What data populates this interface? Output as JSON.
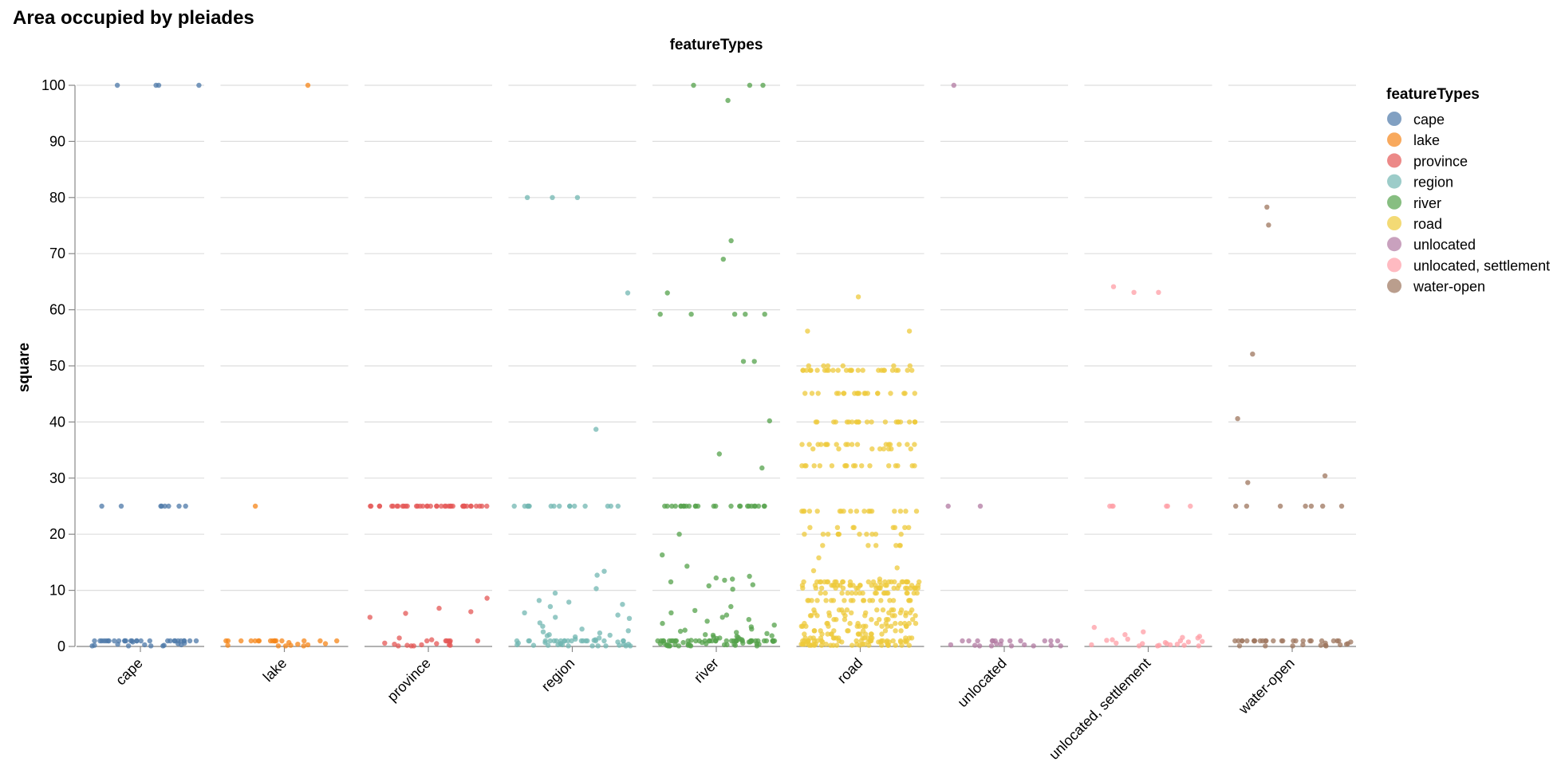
{
  "chart_data": {
    "type": "scatter",
    "title": "Area occupied by pleiades",
    "column_title": "featureTypes",
    "ylabel": "square",
    "ylim": [
      0,
      100
    ],
    "yticks": [
      0,
      10,
      20,
      30,
      40,
      50,
      60,
      70,
      80,
      90,
      100
    ],
    "grid": true,
    "jitter": "horizontal strip plot, points jittered within each column",
    "legend": {
      "title": "featureTypes",
      "position": "right",
      "entries": [
        "cape",
        "lake",
        "province",
        "region",
        "river",
        "road",
        "unlocated",
        "unlocated, settlement",
        "water-open"
      ]
    },
    "colors": {
      "cape": "#4c78a8",
      "lake": "#f58518",
      "province": "#e45756",
      "region": "#72b7b2",
      "river": "#54a24b",
      "road": "#eeca3b",
      "unlocated": "#b279a2",
      "unlocated, settlement": "#ff9da6",
      "water-open": "#9d755d"
    },
    "series": [
      {
        "name": "cape",
        "values": [
          100,
          100,
          100,
          100,
          25,
          25,
          25,
          25,
          25,
          25,
          25,
          25,
          1,
          1,
          1,
          1,
          1,
          1,
          1,
          1,
          1,
          1,
          1,
          1,
          1,
          1,
          1,
          1,
          1,
          1,
          1,
          1,
          1,
          1,
          1,
          1,
          1,
          1,
          1,
          1,
          0.8,
          0.6,
          0.5,
          0.4,
          0.3,
          0.3,
          0.2,
          0.2,
          0.1,
          0.1,
          0.1,
          0.1
        ]
      },
      {
        "name": "lake",
        "values": [
          100,
          25,
          1,
          1,
          1,
          1,
          1,
          1,
          1,
          1,
          1,
          1,
          1,
          1,
          1,
          1,
          1,
          1,
          0.7,
          0.5,
          0.4,
          0.3,
          0.2,
          0.2,
          0.1,
          0.1,
          0.1
        ]
      },
      {
        "name": "province",
        "values": [
          25,
          25,
          25,
          25,
          25,
          25,
          25,
          25,
          25,
          25,
          25,
          25,
          25,
          25,
          25,
          25,
          25,
          25,
          25,
          25,
          25,
          25,
          25,
          25,
          25,
          25,
          25,
          25,
          25,
          25,
          25,
          25,
          25,
          25,
          25,
          25,
          25,
          25,
          25,
          25,
          8.6,
          6.8,
          6.2,
          5.9,
          5.2,
          1.5,
          1.2,
          1,
          1,
          1,
          1,
          1,
          1,
          0.8,
          0.6,
          0.5,
          0.4,
          0.3,
          0.3,
          0.2,
          0.2,
          0.1,
          0.1,
          0.1
        ]
      },
      {
        "name": "region",
        "values": [
          80,
          80,
          80,
          63,
          38.7,
          25,
          25,
          25,
          25,
          25,
          25,
          25,
          25,
          25,
          25,
          25,
          25,
          25,
          25,
          25,
          25,
          13.4,
          12.7,
          10.3,
          9.5,
          8.2,
          7.9,
          7.5,
          7.1,
          6,
          5.6,
          5.2,
          5,
          4.2,
          3.6,
          3.1,
          2.8,
          2.6,
          2.4,
          2.1,
          2,
          1.9,
          1.7,
          1.5,
          1.3,
          1.2,
          1.1,
          1,
          1,
          1,
          1,
          1,
          1,
          1,
          1,
          1,
          1,
          1,
          1,
          1,
          1,
          1,
          1,
          1,
          1,
          1,
          1,
          0.8,
          0.7,
          0.6,
          0.5,
          0.5,
          0.4,
          0.4,
          0.3,
          0.3,
          0.3,
          0.2,
          0.2,
          0.2,
          0.1,
          0.1,
          0.1,
          0.1,
          0.1,
          0.1
        ]
      },
      {
        "name": "river",
        "values": [
          100,
          100,
          100,
          97.3,
          72.3,
          69,
          63,
          59.2,
          59.2,
          59.2,
          59.2,
          59.2,
          50.8,
          50.8,
          40.2,
          34.3,
          31.8,
          25,
          25,
          25,
          25,
          25,
          25,
          25,
          25,
          25,
          25,
          25,
          25,
          25,
          25,
          25,
          25,
          25,
          25,
          25,
          25,
          25,
          25,
          25,
          25,
          25,
          25,
          20,
          16.3,
          14.3,
          12.5,
          12.2,
          12,
          11.8,
          11.5,
          11,
          10.8,
          10.2,
          7.1,
          6.4,
          6,
          5.6,
          5.2,
          4.8,
          4.5,
          4.1,
          3.8,
          3.5,
          3.1,
          2.9,
          2.7,
          2.5,
          2.3,
          2.1,
          2,
          1.9,
          1.8,
          1.7,
          1.6,
          1.5,
          1.4,
          1.3,
          1.2,
          1.1,
          1,
          1,
          1,
          1,
          1,
          1,
          1,
          1,
          1,
          1,
          1,
          1,
          1,
          1,
          1,
          1,
          1,
          1,
          1,
          1,
          1,
          1,
          1,
          1,
          1,
          1,
          1,
          1,
          1,
          1,
          1,
          1,
          1,
          1,
          1,
          1,
          0.9,
          0.8,
          0.8,
          0.7,
          0.7,
          0.6,
          0.6,
          0.5,
          0.5,
          0.5,
          0.4,
          0.4,
          0.4,
          0.3,
          0.3,
          0.3,
          0.3,
          0.2,
          0.2,
          0.2,
          0.2,
          0.1,
          0.1,
          0.1,
          0.1,
          0.1,
          0.1
        ]
      },
      {
        "name": "road",
        "values": [
          62.3,
          56.2,
          56.2,
          49.2,
          49.2,
          49.2,
          49.2,
          49.2,
          49.2,
          49.2,
          49.2,
          49.2,
          49.2,
          49.2,
          49.2,
          49.2,
          49.2,
          49.2,
          49.2,
          49.2,
          49.2,
          49.2,
          49.2,
          49.2,
          49.2,
          49.2,
          49.2,
          49.2,
          49.2,
          50,
          50,
          50,
          50,
          50,
          50,
          45.1,
          45.1,
          45.1,
          45.1,
          45.1,
          45.1,
          45.1,
          45.1,
          45.1,
          45.1,
          45.1,
          45.1,
          45.1,
          45.1,
          45.1,
          45.1,
          45.1,
          45.1,
          45.1,
          45.1,
          40,
          40,
          40,
          40,
          40,
          40,
          40,
          40,
          40,
          40,
          40,
          40,
          40,
          40,
          40,
          40,
          40,
          40,
          40,
          40,
          40,
          40,
          36,
          36,
          36,
          36,
          36,
          36,
          36,
          36,
          36,
          36,
          36,
          36,
          36,
          36,
          36,
          36,
          36,
          36,
          35.2,
          35.2,
          35.2,
          35.2,
          35.2,
          35.2,
          35.2,
          35.2,
          32.2,
          32.2,
          32.2,
          32.2,
          32.2,
          32.2,
          32.2,
          32.2,
          32.2,
          32.2,
          32.2,
          32.2,
          32.2,
          32.2,
          32.2,
          32.2,
          32.2,
          32.2,
          24.1,
          24.1,
          24.1,
          24.1,
          24.1,
          24.1,
          24.1,
          24.1,
          24.1,
          24.1,
          24.1,
          24.1,
          24.1,
          24.1,
          24.1,
          24.1,
          24.1,
          24.1,
          21.2,
          21.2,
          21.2,
          21.2,
          21.2,
          21.2,
          21.2,
          21.2,
          20,
          20,
          20,
          20,
          20,
          20,
          20,
          20,
          20,
          20,
          20,
          18,
          18,
          18,
          18,
          18,
          18,
          15.8,
          14,
          13.5,
          12,
          11.5,
          11.5,
          11.5,
          11.5,
          11.5,
          11.5,
          11.5,
          11.5,
          11.5,
          11.5,
          11.5,
          11.5,
          11.5,
          11.5,
          11.5,
          11.5,
          11.5,
          11.5,
          11.5,
          11.5,
          11.5,
          11.5,
          11.5,
          11.5,
          11.5,
          11.5,
          10.9,
          10.9,
          10.9,
          10.9,
          10.9,
          10.9,
          10.9,
          10.9,
          10.9,
          10.9,
          10.9,
          10.9,
          10.9,
          10.9,
          10.9,
          10.9,
          10.9,
          10.9,
          10.9,
          10.9,
          10.4,
          10.4,
          10.4,
          10.4,
          10.4,
          10.4,
          10.4,
          10.4,
          10.4,
          10.4,
          10.4,
          10.4,
          10.4,
          10.4,
          10.4,
          10.4,
          10.4,
          10.4,
          10.4,
          10.4,
          9.5,
          9.5,
          9.5,
          9.5,
          9.5,
          9.5,
          9.5,
          9.5,
          9.5,
          9.5,
          9.5,
          9.5,
          9.5,
          9.5,
          9.5,
          9.5,
          9.5,
          9.5,
          8.2,
          8.2,
          8.2,
          8.2,
          8.2,
          8.2,
          8.2,
          8.2,
          8.2,
          8.2,
          8.2,
          8.2,
          8.2,
          8.2,
          8.2,
          8.2,
          8.2,
          8.2,
          8.2,
          8.2,
          6.5,
          6.5,
          6.5,
          6.5,
          6.5,
          6.5,
          6.5,
          6.5,
          6.5,
          6.5,
          6,
          6,
          6,
          6,
          6,
          6,
          6,
          6,
          6,
          5.5,
          5.5,
          5.5,
          5.5,
          5.5,
          5.5,
          5.5,
          5.5,
          5.5,
          5.5,
          4.8,
          4.8,
          4.8,
          4.8,
          4.8,
          4.8,
          4.8,
          4.8,
          4.1,
          4.1,
          4.1,
          4.1,
          4.1,
          4.1,
          4.1,
          4.1,
          4.1,
          4.1,
          4.1,
          4.1,
          3.6,
          3.6,
          3.6,
          3.6,
          3.6,
          3.6,
          3.6,
          3.6,
          3.6,
          3.6,
          3.6,
          3.6,
          3.6,
          2.8,
          2.8,
          2.8,
          2.8,
          2.8,
          2.8,
          2.8,
          2.8,
          2.8,
          2.8,
          2.2,
          2.2,
          2.2,
          2.2,
          2.2,
          2.2,
          2.2,
          2.2,
          2.2,
          2.2,
          2.2,
          2.2,
          1.5,
          1.5,
          1.5,
          1.5,
          1.5,
          1.5,
          1.5,
          1.5,
          1.5,
          1.5,
          1.5,
          1.5,
          1.5,
          1.5,
          1.5,
          1.5,
          1,
          1,
          1,
          1,
          1,
          1,
          1,
          1,
          1,
          1,
          1,
          1,
          1,
          1,
          1,
          1,
          1,
          1,
          1,
          1,
          0.8,
          0.8,
          0.8,
          0.8,
          0.8,
          0.8,
          0.8,
          0.8,
          0.8,
          0.8,
          0.4,
          0.4,
          0.4,
          0.4,
          0.4,
          0.4,
          0.4,
          0.4,
          0.4,
          0.4,
          0.4,
          0.4,
          0.2,
          0.2,
          0.2,
          0.2,
          0.2,
          0.2,
          0.2,
          0.2,
          0.2,
          0.2,
          0.2,
          0.2,
          0.2,
          0.2,
          0.2,
          0.2
        ]
      },
      {
        "name": "unlocated",
        "values": [
          100,
          25,
          25,
          1,
          1,
          1,
          1,
          1,
          1,
          1,
          1,
          1,
          1,
          1,
          1,
          0.5,
          0.4,
          0.3,
          0.3,
          0.2,
          0.2,
          0.1,
          0.1,
          0.1,
          0.1,
          0.1
        ]
      },
      {
        "name": "unlocated, settlement",
        "values": [
          64.1,
          63.1,
          63.1,
          25,
          25,
          25,
          25,
          25,
          25,
          3.4,
          2.6,
          2.1,
          1.8,
          1.6,
          1.5,
          1.3,
          1.2,
          1.1,
          1,
          0.9,
          0.8,
          0.7,
          0.6,
          0.5,
          0.5,
          0.4,
          0.3,
          0.3,
          0.2,
          0.2,
          0.1,
          0.1,
          0.1
        ]
      },
      {
        "name": "water-open",
        "values": [
          78.3,
          75.1,
          52.1,
          40.6,
          30.4,
          29.2,
          25,
          25,
          25,
          25,
          25,
          25,
          25,
          1,
          1,
          1,
          1,
          1,
          1,
          1,
          1,
          1,
          1,
          1,
          1,
          1,
          1,
          1,
          1,
          1,
          1,
          1,
          1,
          1,
          1,
          1,
          1,
          0.8,
          0.6,
          0.5,
          0.4,
          0.3,
          0.3,
          0.2,
          0.2,
          0.1,
          0.1,
          0.1,
          0.1
        ]
      }
    ]
  }
}
